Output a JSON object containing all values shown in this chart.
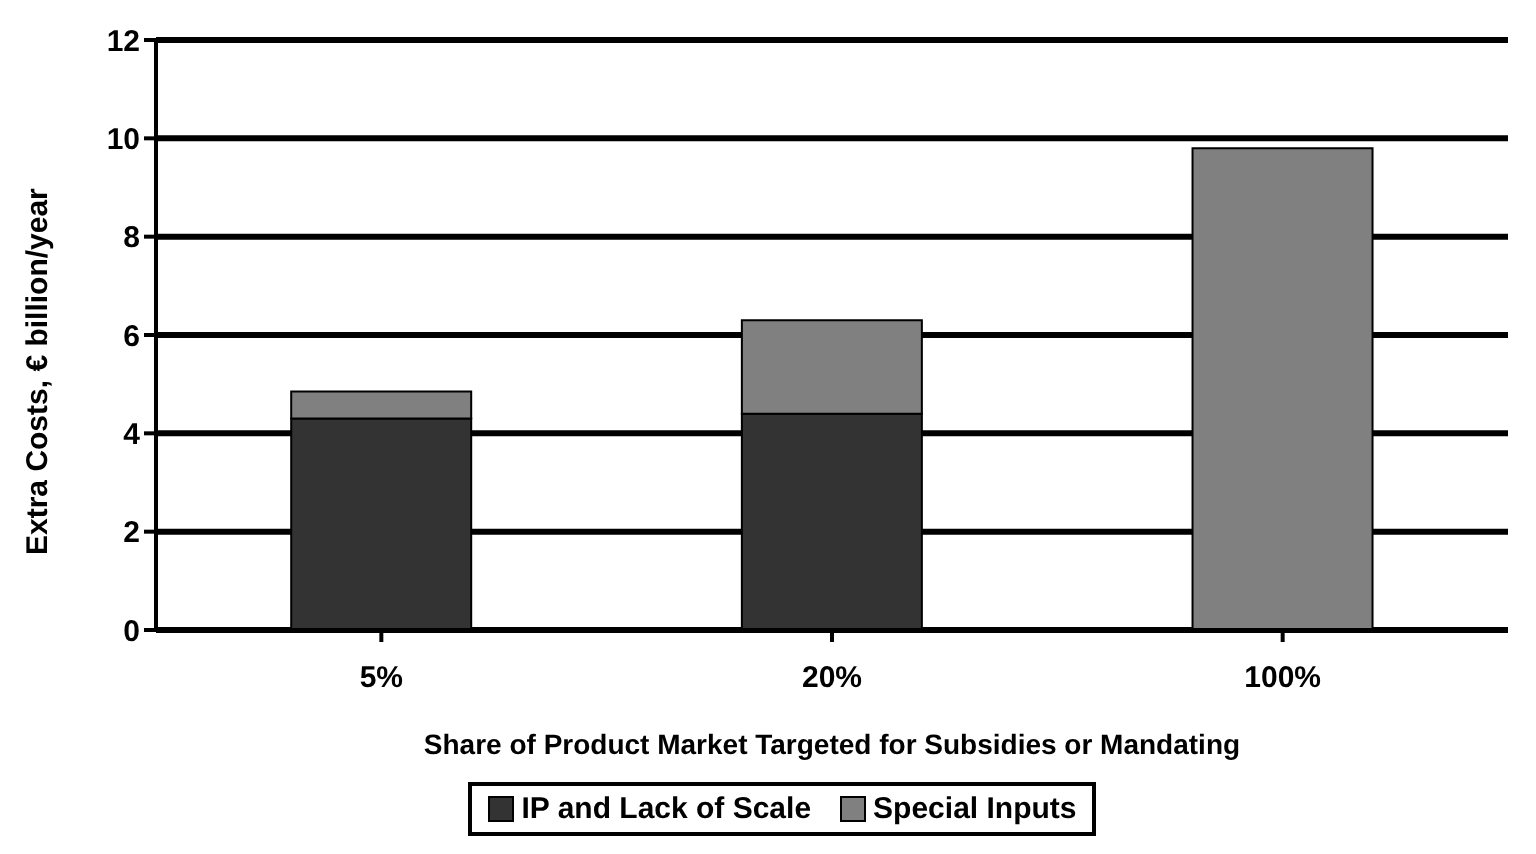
{
  "chart_data": {
    "type": "bar",
    "stacked": true,
    "xlabel": "Share of Product Market Targeted for Subsidies or Mandating",
    "ylabel": "Extra Costs, € billion/year",
    "categories": [
      "5%",
      "20%",
      "100%"
    ],
    "series": [
      {
        "name": "IP and Lack of Scale",
        "color": "#333333",
        "values": [
          4.3,
          4.4,
          0
        ]
      },
      {
        "name": "Special Inputs",
        "color": "#808080",
        "values": [
          0.55,
          1.9,
          9.8
        ]
      }
    ],
    "ylim": [
      0,
      12
    ],
    "yticks": [
      0,
      2,
      4,
      6,
      8,
      10,
      12
    ],
    "grid": "y",
    "legend": "bottom"
  }
}
